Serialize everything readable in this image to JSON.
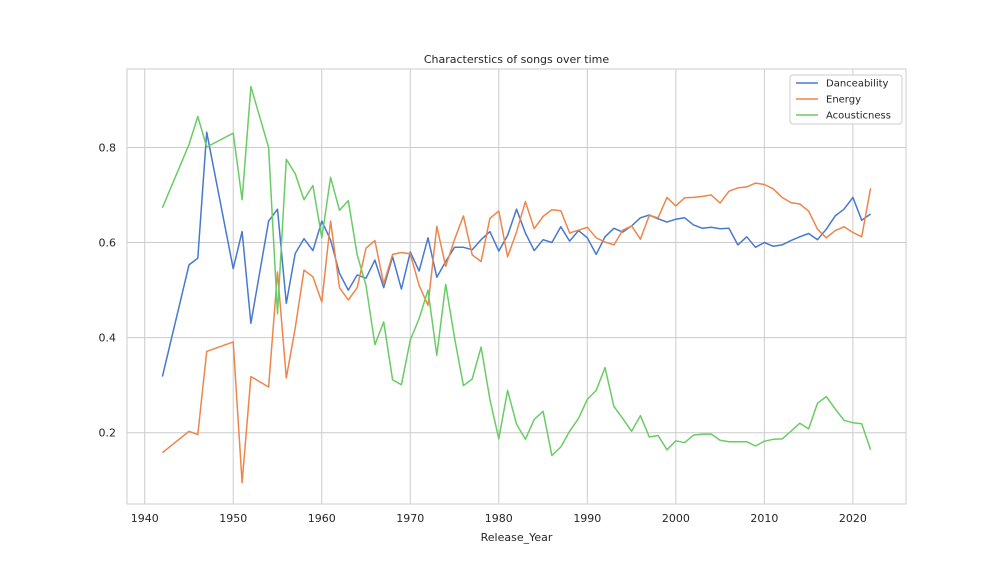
{
  "chart_data": {
    "type": "line",
    "title": "Characterstics of songs over time",
    "xlabel": "Release_Year",
    "ylabel": "",
    "xlim": [
      1938,
      2026
    ],
    "ylim": [
      0.05,
      0.965
    ],
    "xticks": [
      1940,
      1950,
      1960,
      1970,
      1980,
      1990,
      2000,
      2010,
      2020
    ],
    "yticks": [
      0.2,
      0.4,
      0.6,
      0.8
    ],
    "grid": true,
    "legend_position": "top-right",
    "x": [
      1942,
      1945,
      1946,
      1947,
      1950,
      1951,
      1952,
      1954,
      1955,
      1956,
      1957,
      1958,
      1959,
      1960,
      1961,
      1962,
      1963,
      1964,
      1965,
      1966,
      1967,
      1968,
      1969,
      1970,
      1971,
      1972,
      1973,
      1974,
      1975,
      1976,
      1977,
      1978,
      1979,
      1980,
      1981,
      1982,
      1983,
      1984,
      1985,
      1986,
      1987,
      1988,
      1989,
      1990,
      1991,
      1992,
      1993,
      1994,
      1995,
      1996,
      1997,
      1998,
      1999,
      2000,
      2001,
      2002,
      2003,
      2004,
      2005,
      2006,
      2007,
      2008,
      2009,
      2010,
      2011,
      2012,
      2013,
      2014,
      2015,
      2016,
      2017,
      2018,
      2019,
      2020,
      2021,
      2022
    ],
    "series": [
      {
        "name": "Danceability",
        "color": "#4878d0",
        "values": [
          0.318,
          0.553,
          0.567,
          0.832,
          0.545,
          0.623,
          0.43,
          0.645,
          0.67,
          0.472,
          0.577,
          0.608,
          0.583,
          0.645,
          0.605,
          0.535,
          0.5,
          0.532,
          0.525,
          0.563,
          0.505,
          0.57,
          0.502,
          0.58,
          0.54,
          0.61,
          0.527,
          0.56,
          0.59,
          0.59,
          0.585,
          0.606,
          0.623,
          0.582,
          0.615,
          0.67,
          0.62,
          0.583,
          0.606,
          0.6,
          0.633,
          0.603,
          0.625,
          0.61,
          0.575,
          0.612,
          0.63,
          0.622,
          0.635,
          0.652,
          0.658,
          0.65,
          0.643,
          0.649,
          0.652,
          0.637,
          0.63,
          0.632,
          0.629,
          0.63,
          0.595,
          0.612,
          0.59,
          0.6,
          0.592,
          0.595,
          0.604,
          0.612,
          0.619,
          0.606,
          0.628,
          0.656,
          0.67,
          0.695,
          0.647,
          0.66
        ]
      },
      {
        "name": "Energy",
        "color": "#ee854a",
        "values": [
          0.158,
          0.203,
          0.196,
          0.371,
          0.391,
          0.095,
          0.318,
          0.296,
          0.538,
          0.315,
          0.42,
          0.542,
          0.528,
          0.475,
          0.645,
          0.505,
          0.479,
          0.505,
          0.588,
          0.604,
          0.513,
          0.575,
          0.579,
          0.576,
          0.51,
          0.468,
          0.634,
          0.55,
          0.606,
          0.656,
          0.574,
          0.56,
          0.651,
          0.666,
          0.57,
          0.622,
          0.686,
          0.629,
          0.655,
          0.669,
          0.667,
          0.62,
          0.626,
          0.632,
          0.61,
          0.601,
          0.595,
          0.626,
          0.635,
          0.607,
          0.657,
          0.652,
          0.695,
          0.677,
          0.694,
          0.695,
          0.697,
          0.7,
          0.683,
          0.708,
          0.715,
          0.717,
          0.725,
          0.722,
          0.713,
          0.695,
          0.684,
          0.681,
          0.666,
          0.628,
          0.61,
          0.625,
          0.633,
          0.621,
          0.612,
          0.714
        ]
      },
      {
        "name": "Acousticness",
        "color": "#6acc64",
        "values": [
          0.673,
          0.806,
          0.865,
          0.801,
          0.83,
          0.69,
          0.928,
          0.8,
          0.45,
          0.775,
          0.745,
          0.69,
          0.72,
          0.61,
          0.737,
          0.668,
          0.688,
          0.574,
          0.51,
          0.385,
          0.433,
          0.311,
          0.301,
          0.395,
          0.44,
          0.5,
          0.363,
          0.512,
          0.4,
          0.299,
          0.313,
          0.38,
          0.27,
          0.187,
          0.289,
          0.218,
          0.186,
          0.228,
          0.245,
          0.152,
          0.17,
          0.203,
          0.23,
          0.27,
          0.289,
          0.337,
          0.255,
          0.23,
          0.203,
          0.236,
          0.191,
          0.194,
          0.164,
          0.183,
          0.179,
          0.195,
          0.197,
          0.197,
          0.184,
          0.181,
          0.181,
          0.181,
          0.172,
          0.182,
          0.186,
          0.187,
          0.203,
          0.22,
          0.208,
          0.262,
          0.276,
          0.25,
          0.226,
          0.221,
          0.219,
          0.164
        ]
      }
    ]
  }
}
